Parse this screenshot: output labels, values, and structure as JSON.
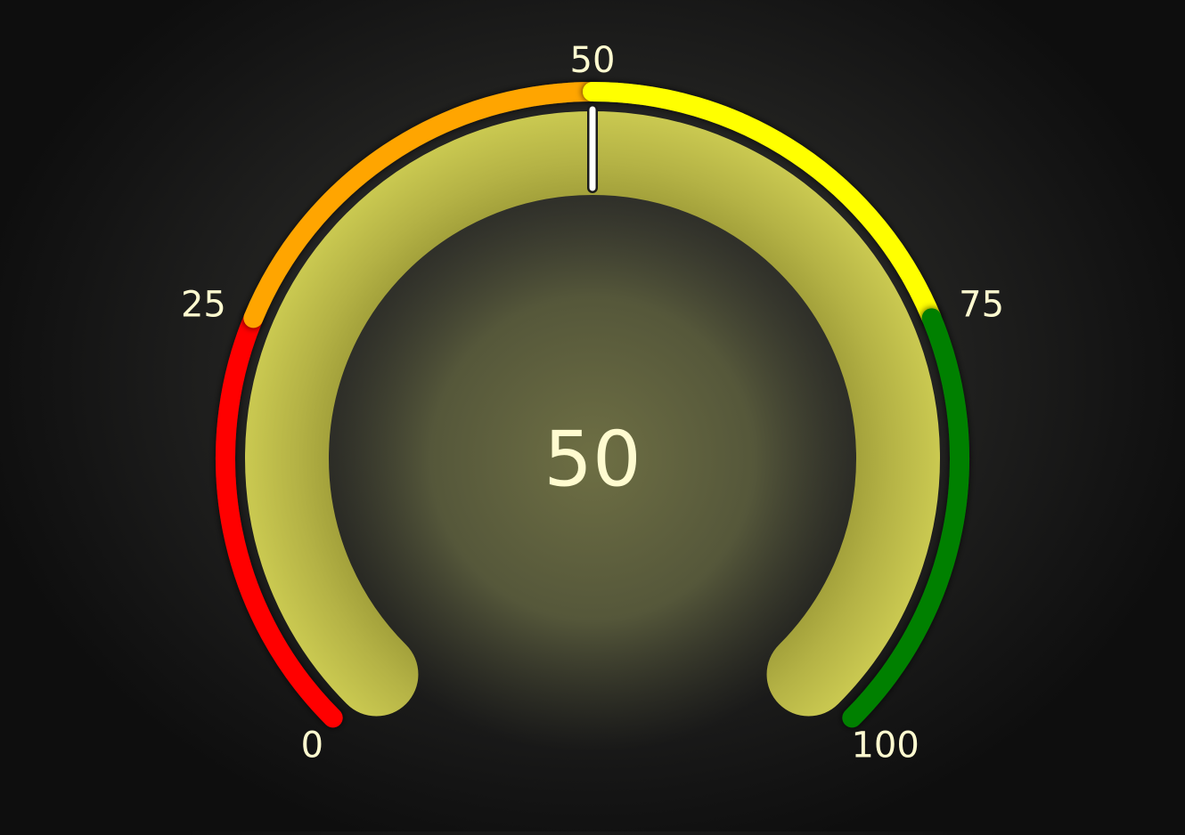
{
  "chart_data": {
    "type": "gauge",
    "value": 50,
    "value_label": "50",
    "min": 0,
    "max": 100,
    "ticks": [
      {
        "value": 0,
        "label": "0"
      },
      {
        "value": 25,
        "label": "25"
      },
      {
        "value": 50,
        "label": "50"
      },
      {
        "value": 75,
        "label": "75"
      },
      {
        "value": 100,
        "label": "100"
      }
    ],
    "ranges": [
      {
        "from": 0,
        "to": 25,
        "color": "#ff0000"
      },
      {
        "from": 25,
        "to": 50,
        "color": "#ffa500"
      },
      {
        "from": 50,
        "to": 75,
        "color": "#ffff00"
      },
      {
        "from": 75,
        "to": 100,
        "color": "#008000"
      }
    ],
    "band_color": "#c2c04a",
    "needle_color": "#ffffff",
    "label_color": "#fffbd0"
  }
}
